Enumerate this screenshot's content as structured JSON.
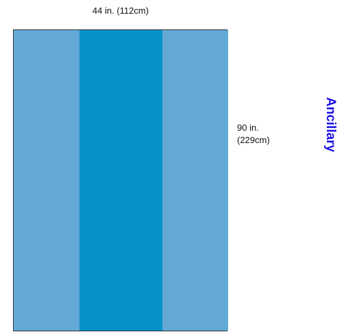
{
  "diagram": {
    "width_label": "44 in. (112cm)",
    "length_label_line1": "90 in.",
    "length_label_line2": "(229cm)",
    "category_label": "Ancillary"
  },
  "colors": {
    "side_panel": "#62a9d6",
    "center_panel": "#0692c9",
    "category_text": "#1c10e6"
  }
}
